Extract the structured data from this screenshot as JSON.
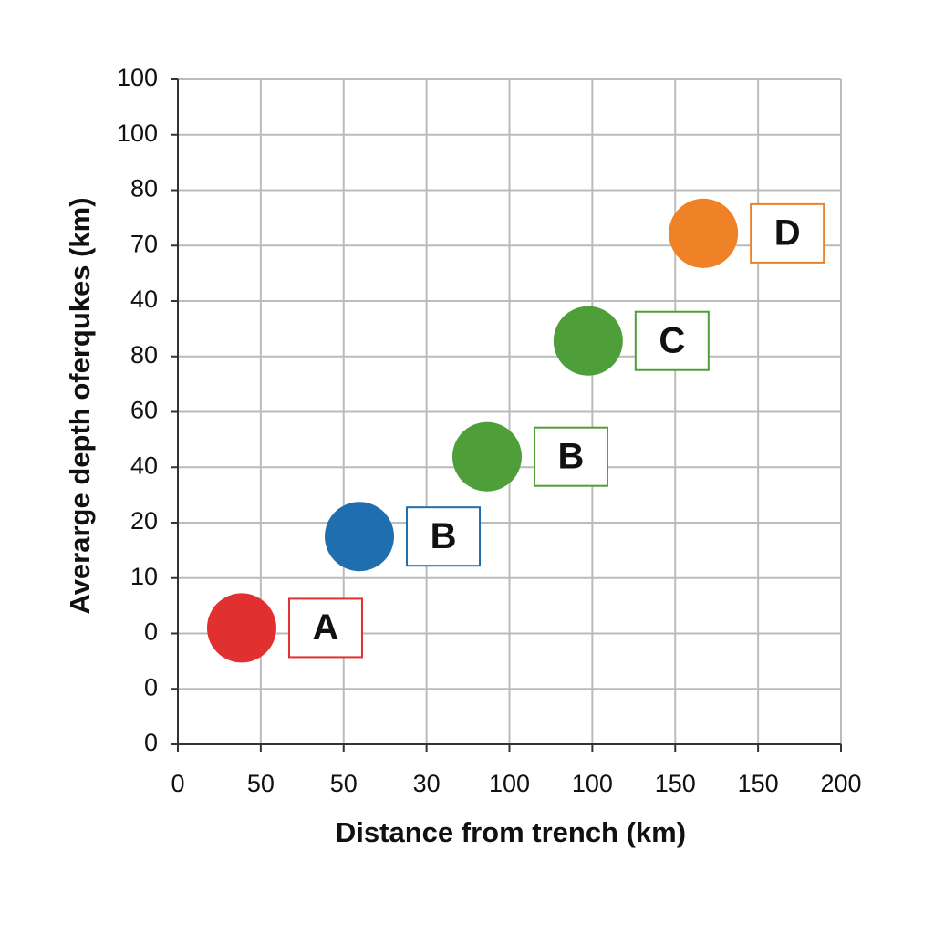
{
  "chart_data": {
    "type": "scatter",
    "x_label": "Distance from trench (km)",
    "y_label": "Averarge depth oferqukes (km)",
    "x": [
      0.77,
      2.19,
      3.73,
      4.95,
      6.34
    ],
    "values": [
      2.1,
      3.75,
      5.19,
      7.28,
      9.22
    ],
    "labels": [
      "A",
      "B",
      "B",
      "C",
      "D"
    ],
    "colors": [
      "#e03030",
      "#1f6fb0",
      "#4e9e3a",
      "#4e9e3a",
      "#ef8126"
    ],
    "xlim": [
      0,
      8
    ],
    "ylim": [
      0,
      12
    ],
    "xticks": [
      {
        "value": 0,
        "label": "0"
      },
      {
        "value": 1,
        "label": "50"
      },
      {
        "value": 2,
        "label": "50"
      },
      {
        "value": 3,
        "label": "30"
      },
      {
        "value": 4,
        "label": "100"
      },
      {
        "value": 5,
        "label": "100"
      },
      {
        "value": 6,
        "label": "150"
      },
      {
        "value": 7,
        "label": "150"
      },
      {
        "value": 8,
        "label": "200"
      }
    ],
    "yticks": [
      {
        "value": 0,
        "label": "0"
      },
      {
        "value": 1,
        "label": "0"
      },
      {
        "value": 2,
        "label": "0"
      },
      {
        "value": 3,
        "label": "10"
      },
      {
        "value": 4,
        "label": "20"
      },
      {
        "value": 5,
        "label": "40"
      },
      {
        "value": 6,
        "label": "60"
      },
      {
        "value": 7,
        "label": "80"
      },
      {
        "value": 8,
        "label": "40"
      },
      {
        "value": 9,
        "label": "70"
      },
      {
        "value": 10,
        "label": "80"
      },
      {
        "value": 11,
        "label": "100"
      },
      {
        "value": 12,
        "label": "100"
      }
    ],
    "grid": true
  }
}
